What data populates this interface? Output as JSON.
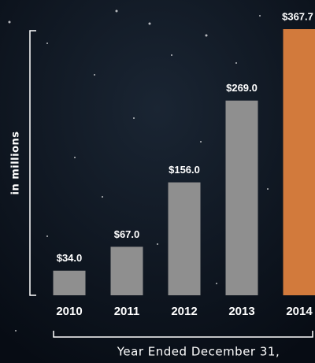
{
  "chart_data": {
    "type": "bar",
    "categories": [
      "2010",
      "2011",
      "2012",
      "2013",
      "2014"
    ],
    "values": [
      34.0,
      67.0,
      156.0,
      269.0,
      367.7
    ],
    "value_labels": [
      "$34.0",
      "$67.0",
      "$156.0",
      "$269.0",
      "$367.7"
    ],
    "colors": [
      "#8f8f8f",
      "#8f8f8f",
      "#8f8f8f",
      "#8f8f8f",
      "#d27a3c"
    ],
    "ylim": [
      0,
      367.7
    ],
    "ylabel": "in millions",
    "xlabel": "Year Ended December 31,"
  }
}
